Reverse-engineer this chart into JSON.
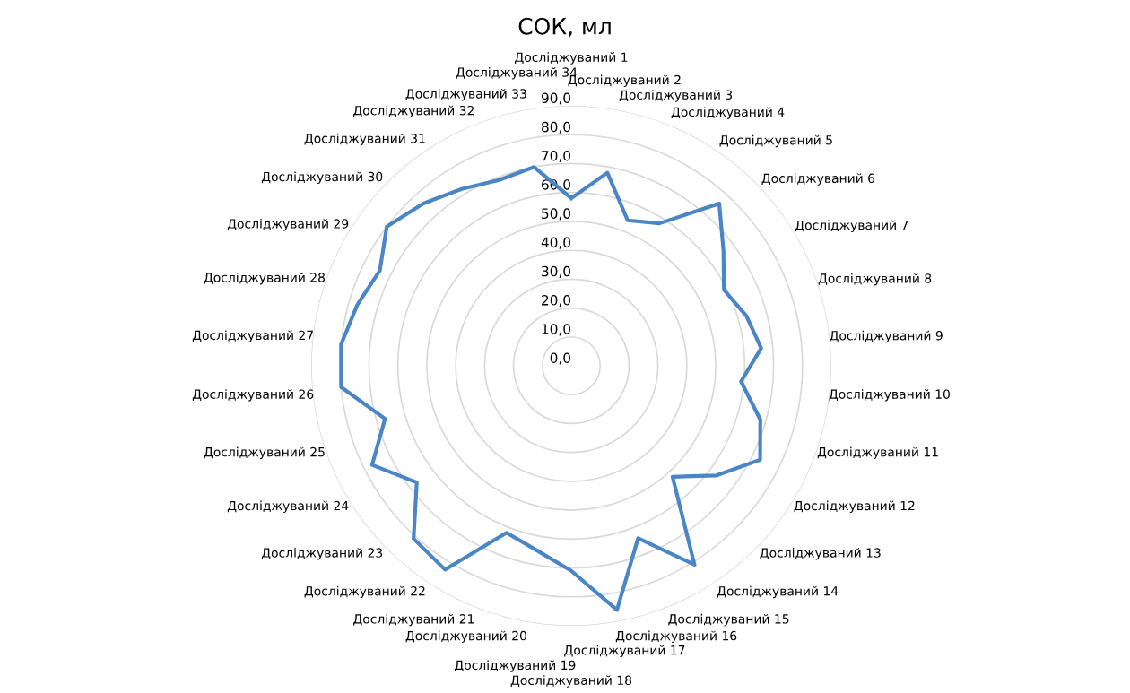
{
  "chart_data": {
    "type": "radar",
    "title": "СОК, мл",
    "categories": [
      "Досліджуваний 1",
      "Досліджуваний 2",
      "Досліджуваний 3",
      "Досліджуваний 4",
      "Досліджуваний 5",
      "Досліджуваний 6",
      "Досліджуваний 7",
      "Досліджуваний 8",
      "Досліджуваний 9",
      "Досліджуваний 10",
      "Досліджуваний 11",
      "Досліджуваний 12",
      "Досліджуваний 13",
      "Досліджуваний 14",
      "Досліджуваний 15",
      "Досліджуваний 16",
      "Досліджуваний 17",
      "Досліджуваний 18",
      "Досліджуваний 19",
      "Досліджуваний 20",
      "Досліджуваний 21",
      "Досліджуваний 22",
      "Досліджуваний 23",
      "Досліджуваний 24",
      "Досліджуваний 25",
      "Досліджуваний 26",
      "Досліджуваний 27",
      "Досліджуваний 28",
      "Досліджуваний 29",
      "Досліджуваний 30",
      "Досліджуваний 31",
      "Досліджуваний 32",
      "Досліджуваний 33",
      "Досліджуваний 34"
    ],
    "series": [
      {
        "color": "#4a86c5",
        "values": [
          58,
          68,
          54,
          58,
          76,
          66,
          59,
          63,
          66,
          59,
          68,
          73,
          63,
          52,
          81,
          64,
          86,
          71,
          65,
          62,
          83,
          81,
          67,
          77,
          67,
          80,
          80,
          77,
          74,
          80,
          76,
          72,
          69,
          70
        ]
      }
    ],
    "ylim": [
      0,
      90
    ],
    "yticks": [
      {
        "value": 0,
        "label": "0,0"
      },
      {
        "value": 10,
        "label": "10,0"
      },
      {
        "value": 20,
        "label": "20,0"
      },
      {
        "value": 30,
        "label": "30,0"
      },
      {
        "value": 40,
        "label": "40,0"
      },
      {
        "value": 50,
        "label": "50,0"
      },
      {
        "value": 60,
        "label": "60,0"
      },
      {
        "value": 70,
        "label": "70,0"
      },
      {
        "value": 80,
        "label": "80,0"
      },
      {
        "value": 90,
        "label": "90,0"
      }
    ],
    "grid": "y",
    "line_style": "solid"
  }
}
